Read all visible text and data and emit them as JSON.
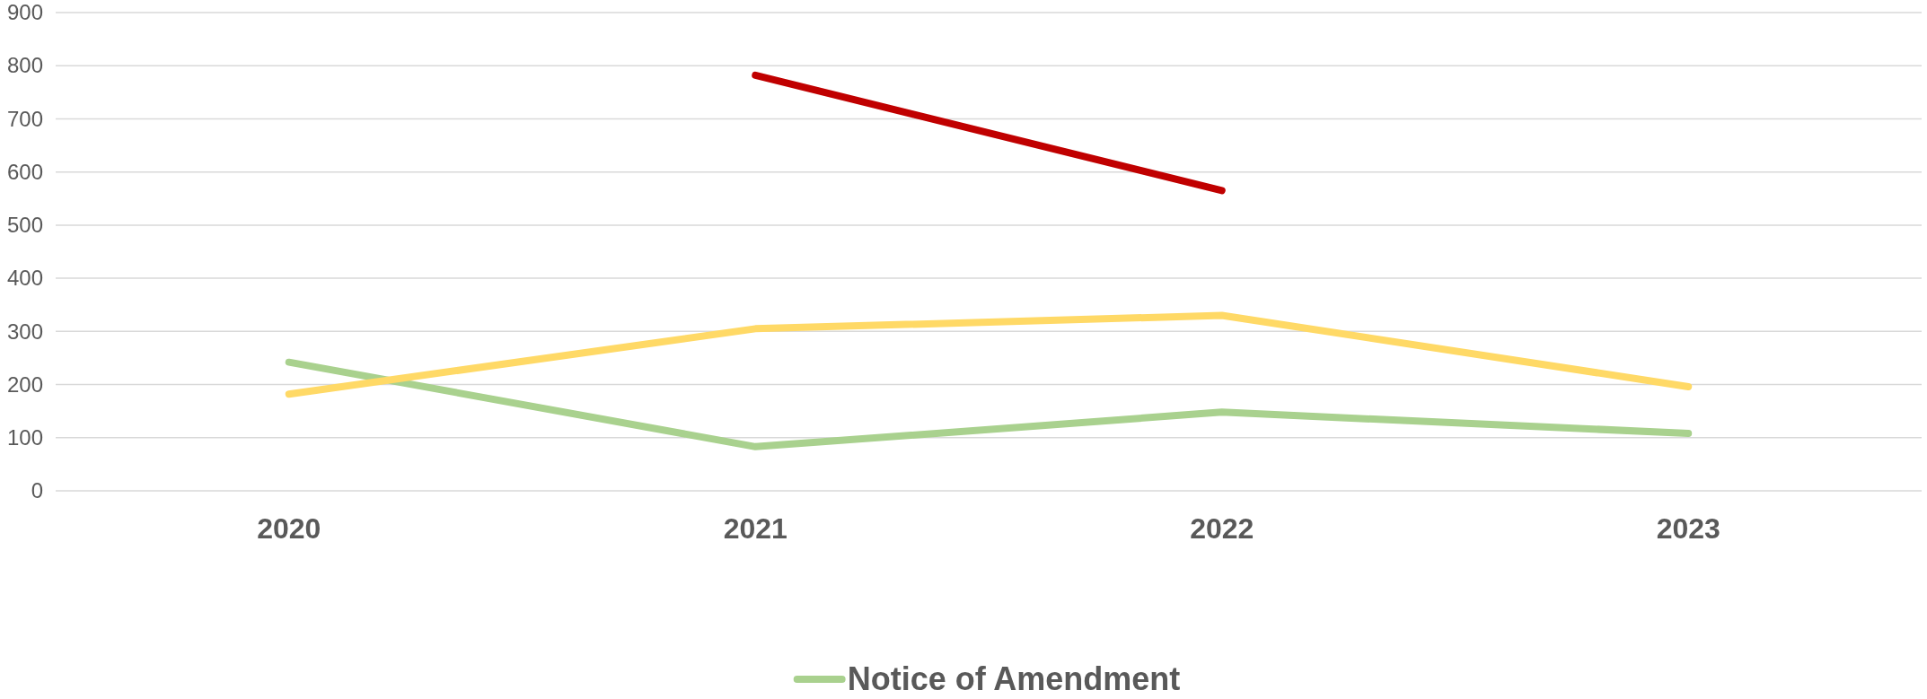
{
  "chart_data": {
    "type": "line",
    "categories": [
      "2020",
      "2021",
      "2022",
      "2023"
    ],
    "series": [
      {
        "name": "Notice of Amendment",
        "color": "#a9d18e",
        "values": [
          242,
          83,
          148,
          108
        ]
      },
      {
        "color": "#ffd966",
        "values": [
          182,
          305,
          330,
          196
        ]
      },
      {
        "color": "#c00000",
        "values": [
          null,
          782,
          565,
          null
        ]
      }
    ],
    "ylim": [
      0,
      900
    ],
    "yticks": [
      0,
      100,
      200,
      300,
      400,
      500,
      600,
      700,
      800,
      900
    ],
    "grid": "y",
    "legend": "bottom",
    "marker": "none",
    "line_style": "solid"
  }
}
